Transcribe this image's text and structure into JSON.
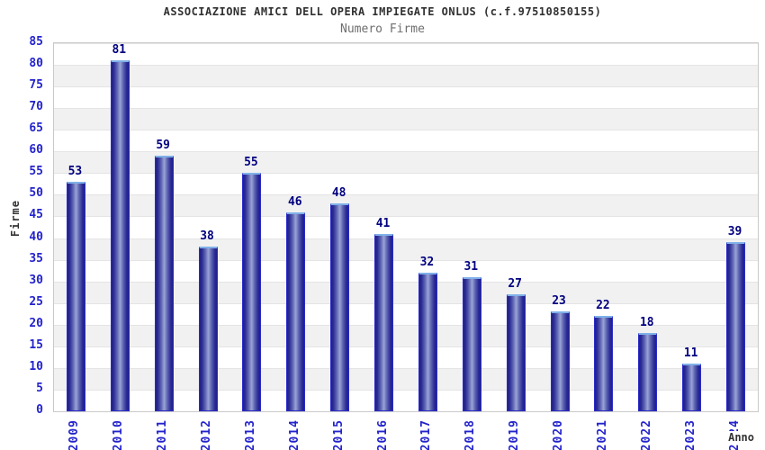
{
  "chart_data": {
    "type": "bar",
    "title": "ASSOCIAZIONE AMICI DELL OPERA IMPIEGATE ONLUS (c.f.97510850155)",
    "subtitle": "Numero Firme",
    "xlabel": "Anno",
    "ylabel": "Firme",
    "categories": [
      "2009",
      "2010",
      "2011",
      "2012",
      "2013",
      "2014",
      "2015",
      "2016",
      "2017",
      "2018",
      "2019",
      "2020",
      "2021",
      "2022",
      "2023",
      "2024"
    ],
    "values": [
      53,
      81,
      59,
      38,
      55,
      46,
      48,
      41,
      32,
      31,
      27,
      23,
      22,
      18,
      11,
      39
    ],
    "ylim": [
      0,
      85
    ],
    "ytick_step": 5,
    "yticks": [
      0,
      5,
      10,
      15,
      20,
      25,
      30,
      35,
      40,
      45,
      50,
      55,
      60,
      65,
      70,
      75,
      80,
      85
    ],
    "grid": "horizontal-bands",
    "legend": "none",
    "colors": {
      "bar_fill_dark": "#20208a",
      "bar_fill_light": "#9ba4d6",
      "bar_border": "#2b2bc8",
      "bar_top_highlight": "#7fb0e8",
      "tick_label": "#2323cc",
      "value_label": "#000080",
      "title": "#303030",
      "subtitle": "#6e6e6e",
      "axis_title": "#333333",
      "band_gray": "#f1f1f1",
      "gridline": "#e4e4e4",
      "plot_border": "#c9c9c9"
    }
  }
}
